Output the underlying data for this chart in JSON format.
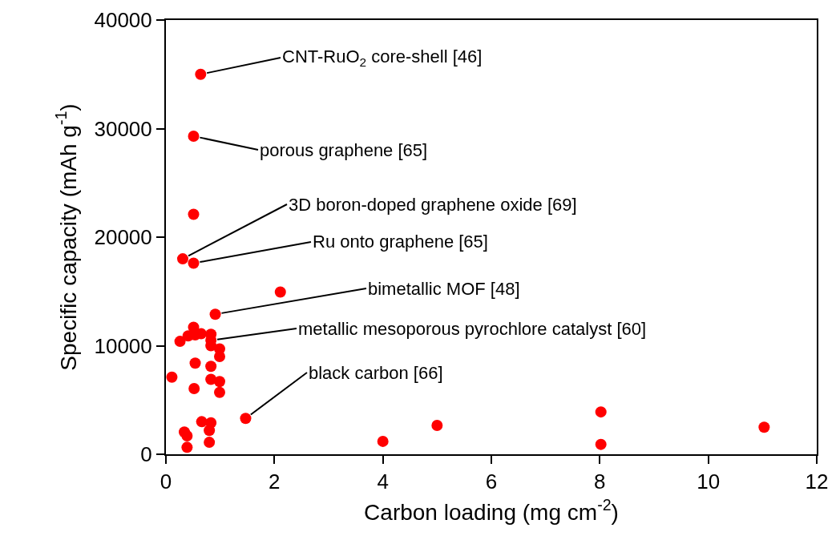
{
  "chart_data": {
    "type": "scatter",
    "xlabel": "Carbon loading (mg cm$^{-2}$)",
    "ylabel": "Specific capacity (mAh g$^{-1}$)",
    "x": [
      0.64,
      0.51,
      0.51,
      0.31,
      0.51,
      2.11,
      0.91,
      0.51,
      0.26,
      0.41,
      0.54,
      0.65,
      0.83,
      0.83,
      0.83,
      0.99,
      0.99,
      0.54,
      0.83,
      0.11,
      0.83,
      0.99,
      0.52,
      0.99,
      1.47,
      0.66,
      0.83,
      0.8,
      0.34,
      0.39,
      0.8,
      0.39,
      4.0,
      5.0,
      8.02,
      8.02,
      11.03
    ],
    "values": [
      35000,
      29300,
      22100,
      18000,
      17600,
      14950,
      12900,
      11700,
      10400,
      10900,
      11000,
      11100,
      11050,
      10500,
      10000,
      9700,
      9000,
      8400,
      8100,
      7100,
      6900,
      6700,
      6050,
      5700,
      3300,
      3000,
      2900,
      2200,
      2050,
      1700,
      1100,
      640,
      1190,
      2660,
      3900,
      910,
      2490
    ],
    "color": "#ff0000",
    "marker": "circle",
    "grid": false,
    "xlim": [
      0,
      12
    ],
    "xticks": [
      0,
      2,
      4,
      6,
      8,
      10,
      12
    ],
    "ylim": [
      0,
      40000
    ],
    "yticks": [
      0,
      10000,
      20000,
      30000,
      40000
    ],
    "annotations": [
      {
        "text": "CNT-RuO$_{2}$ core-shell [46]",
        "x": 0.64,
        "y": 35000
      },
      {
        "text": "porous graphene [65]",
        "x": 0.51,
        "y": 29300
      },
      {
        "text": "3D boron-doped graphene oxide [69]",
        "x": 0.31,
        "y": 18000
      },
      {
        "text": "Ru onto graphene [65]",
        "x": 0.51,
        "y": 17600
      },
      {
        "text": "bimetallic MOF [48]",
        "x": 0.91,
        "y": 12900
      },
      {
        "text": "metallic mesoporous pyrochlore catalyst [60]",
        "x": 0.83,
        "y": 10500
      },
      {
        "text": "black carbon [66]",
        "x": 1.47,
        "y": 3300
      }
    ]
  }
}
